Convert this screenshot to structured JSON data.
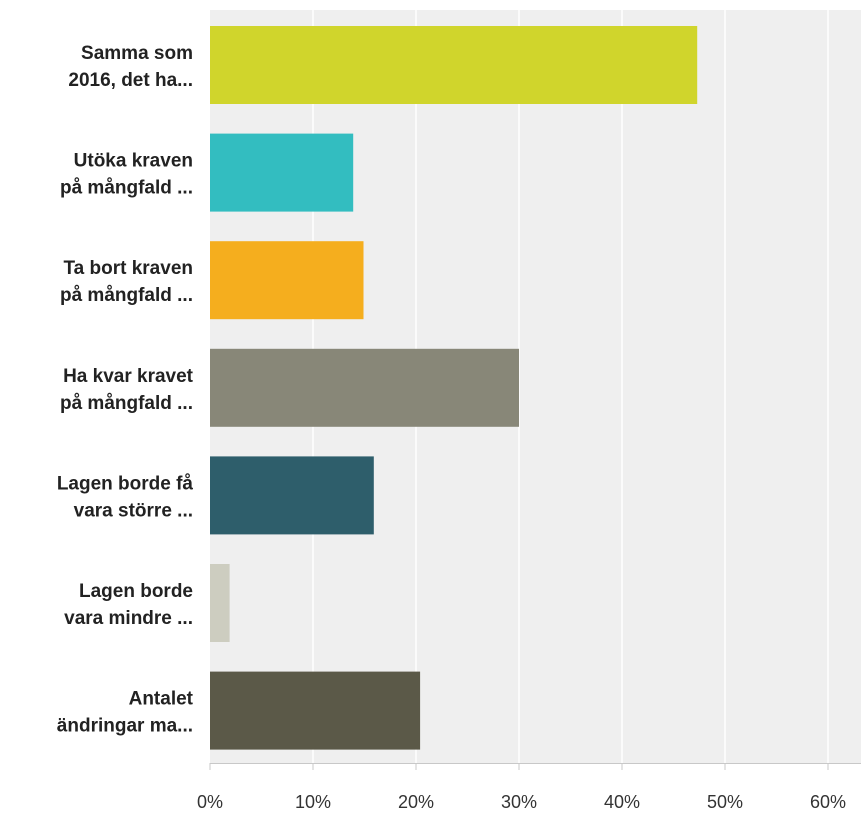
{
  "chart_data": {
    "type": "bar",
    "orientation": "horizontal",
    "title": "",
    "xlabel": "",
    "ylabel": "",
    "categories": [
      [
        "Samma som",
        "2016, det ha..."
      ],
      [
        "Utöka kraven",
        "på mångfald ..."
      ],
      [
        "Ta bort kraven",
        "på mångfald ..."
      ],
      [
        "Ha kvar kravet",
        "på mångfald ..."
      ],
      [
        "Lagen borde få",
        "vara större ..."
      ],
      [
        "Lagen borde",
        "vara mindre ..."
      ],
      [
        "Antalet",
        "ändringar ma..."
      ]
    ],
    "values": [
      47.3,
      13.9,
      14.9,
      30.0,
      15.9,
      1.9,
      20.4
    ],
    "colors": [
      "#d0d52c",
      "#33bdc0",
      "#f5ae1e",
      "#888778",
      "#2e5e6b",
      "#cdcdc0",
      "#5b5948"
    ],
    "xlim": [
      0,
      62
    ],
    "ticks": [
      {
        "value": 0,
        "label": "0%"
      },
      {
        "value": 10,
        "label": "10%"
      },
      {
        "value": 20,
        "label": "20%"
      },
      {
        "value": 30,
        "label": "30%"
      },
      {
        "value": 40,
        "label": "40%"
      },
      {
        "value": 50,
        "label": "50%"
      },
      {
        "value": 60,
        "label": "60%"
      }
    ],
    "grid": true,
    "legend": "none"
  }
}
